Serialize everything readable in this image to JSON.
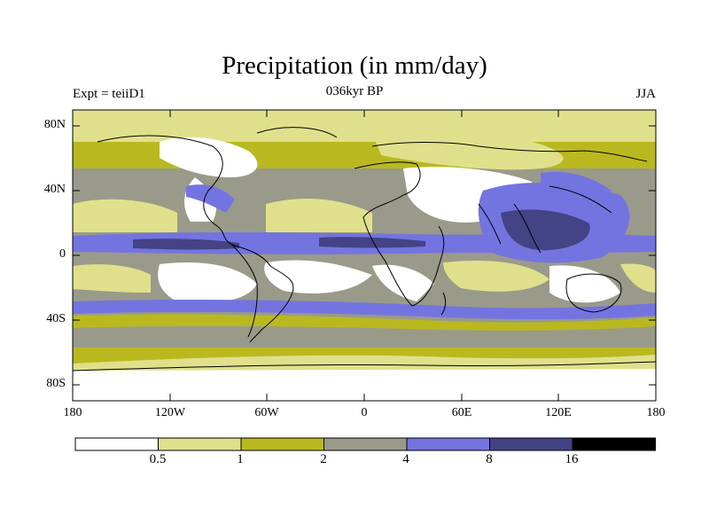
{
  "title": "Precipitation (in mm/day)",
  "subtitle_left": "Expt = teiiD1",
  "subtitle_center": "036kyr BP",
  "subtitle_right": "JJA",
  "lat_labels": [
    "80N",
    "40N",
    "0",
    "40S",
    "80S"
  ],
  "lon_labels": [
    "180",
    "120W",
    "60W",
    "0",
    "60E",
    "120E",
    "180"
  ],
  "colorbar": {
    "thresholds": [
      "0.5",
      "1",
      "2",
      "4",
      "8",
      "16"
    ],
    "colors": [
      "#ffffff",
      "#e0e08c",
      "#b9b91f",
      "#9a9a8a",
      "#7474e0",
      "#434386",
      "#000000"
    ]
  }
}
